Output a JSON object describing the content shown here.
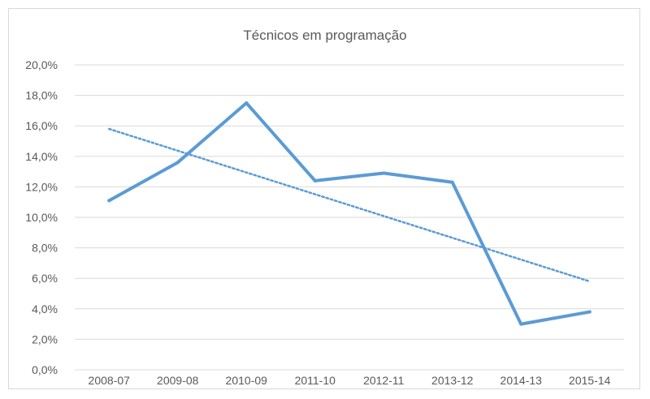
{
  "chart_data": {
    "type": "line",
    "title": "Técnicos em programação",
    "categories": [
      "2008-07",
      "2009-08",
      "2010-09",
      "2011-10",
      "2012-11",
      "2013-12",
      "2014-13",
      "2015-14"
    ],
    "series": [
      {
        "values": [
          11.1,
          13.6,
          17.5,
          12.4,
          12.9,
          12.3,
          3.0,
          3.8
        ],
        "color": "#5b9bd5"
      }
    ],
    "trendline": {
      "type": "linear",
      "style": "dotted",
      "color": "#5b9bd5",
      "values": [
        15.8,
        5.8
      ]
    },
    "ylim": [
      0,
      20
    ],
    "yticks": [
      "0,0%",
      "2,0%",
      "4,0%",
      "6,0%",
      "8,0%",
      "10,0%",
      "12,0%",
      "14,0%",
      "16,0%",
      "18,0%",
      "20,0%"
    ],
    "grid": true,
    "legend": "none",
    "colors": {
      "gridline": "#d9d9d9",
      "text": "#595959",
      "border": "#d9d9d9"
    }
  }
}
